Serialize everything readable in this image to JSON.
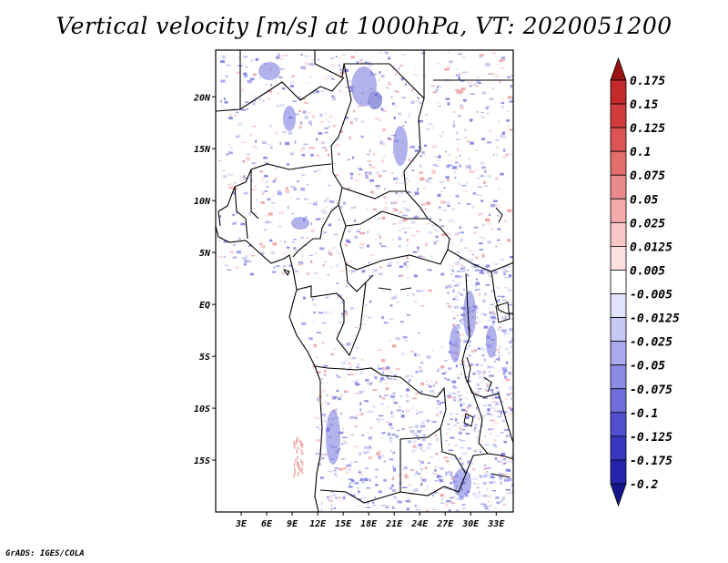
{
  "title": "Vertical velocity [m/s] at 1000hPa, VT: 2020051200",
  "credit": "GrADS: IGES/COLA",
  "map": {
    "lon_range": [
      0,
      35
    ],
    "lat_range": [
      -20,
      24.5
    ],
    "lat_ticks": [
      {
        "label": "20N",
        "value": 20
      },
      {
        "label": "15N",
        "value": 15
      },
      {
        "label": "10N",
        "value": 10
      },
      {
        "label": "5N",
        "value": 5
      },
      {
        "label": "EQ",
        "value": 0
      },
      {
        "label": "5S",
        "value": -5
      },
      {
        "label": "10S",
        "value": -10
      },
      {
        "label": "15S",
        "value": -15
      }
    ],
    "lon_ticks": [
      {
        "label": "3E",
        "value": 3
      },
      {
        "label": "6E",
        "value": 6
      },
      {
        "label": "9E",
        "value": 9
      },
      {
        "label": "12E",
        "value": 12
      },
      {
        "label": "15E",
        "value": 15
      },
      {
        "label": "18E",
        "value": 18
      },
      {
        "label": "21E",
        "value": 21
      },
      {
        "label": "24E",
        "value": 24
      },
      {
        "label": "27E",
        "value": 27
      },
      {
        "label": "30E",
        "value": 30
      },
      {
        "label": "33E",
        "value": 33
      }
    ]
  },
  "colorbar": {
    "levels": [
      {
        "label": "0.175",
        "color": "#b41e1e"
      },
      {
        "label": "0.15",
        "color": "#c42a2a"
      },
      {
        "label": "0.125",
        "color": "#d23c3c"
      },
      {
        "label": "0.1",
        "color": "#dc5555"
      },
      {
        "label": "0.075",
        "color": "#e46e6e"
      },
      {
        "label": "0.05",
        "color": "#ea8a8a"
      },
      {
        "label": "0.025",
        "color": "#f2aaaa"
      },
      {
        "label": "0.0125",
        "color": "#f8c8c8"
      },
      {
        "label": "0.005",
        "color": "#fce0e0"
      },
      {
        "label": "-0.005",
        "color": "#ffffff"
      },
      {
        "label": "-0.0125",
        "color": "#e2e2fa"
      },
      {
        "label": "-0.025",
        "color": "#c8c8f4"
      },
      {
        "label": "-0.05",
        "color": "#aaaaee"
      },
      {
        "label": "-0.075",
        "color": "#8c8ce6"
      },
      {
        "label": "-0.1",
        "color": "#6e6edc"
      },
      {
        "label": "-0.125",
        "color": "#5050d0"
      },
      {
        "label": "-0.175",
        "color": "#3838c0"
      },
      {
        "label": "-0.2",
        "color": "#2424aa"
      }
    ],
    "top_arrow_color": "#9a1414",
    "bottom_arrow_color": "#14148c"
  }
}
